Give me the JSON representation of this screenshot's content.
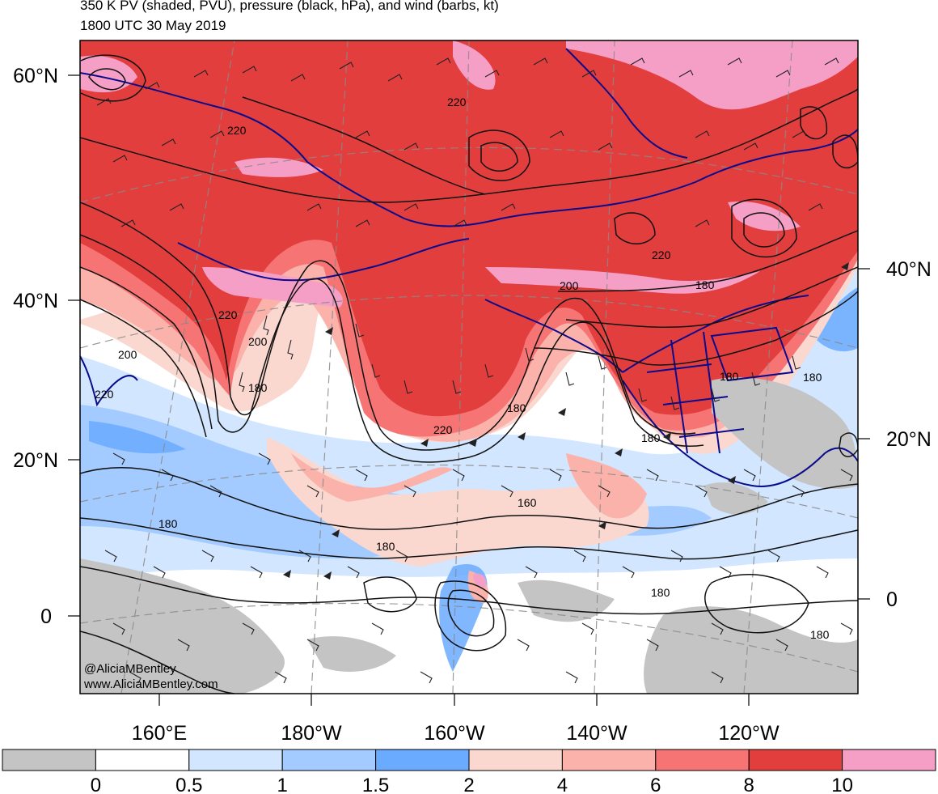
{
  "header": {
    "title": "350 K PV (shaded, PVU), pressure (black, hPa), and wind (barbs, kt)",
    "valid_time": "1800 UTC 30 May 2019"
  },
  "latitude_labels_left": [
    "60°N",
    "40°N",
    "20°N",
    "0"
  ],
  "latitude_labels_right": [
    "40°N",
    "20°N",
    "0"
  ],
  "longitude_labels": [
    "160°E",
    "180°W",
    "160°W",
    "140°W",
    "120°W"
  ],
  "contour_labels": [
    "220",
    "220",
    "220",
    "220",
    "220",
    "200",
    "200",
    "200",
    "180",
    "180",
    "180",
    "180",
    "180",
    "180",
    "160",
    "180",
    "180",
    "180",
    "180",
    "220"
  ],
  "credit": {
    "handle": "@AliciaMBentley",
    "website": "www.AliciaMBentley.com"
  },
  "colorbar": {
    "colors": [
      "#c4c4c4",
      "#ffffff",
      "#d3e6ff",
      "#a4cbff",
      "#6aaaff",
      "#fad8d0",
      "#fbb2ab",
      "#f77474",
      "#e33e3e",
      "#f59fc7"
    ],
    "tick_labels": [
      "0",
      "0.5",
      "1",
      "1.5",
      "2",
      "4",
      "6",
      "8",
      "10"
    ]
  }
}
